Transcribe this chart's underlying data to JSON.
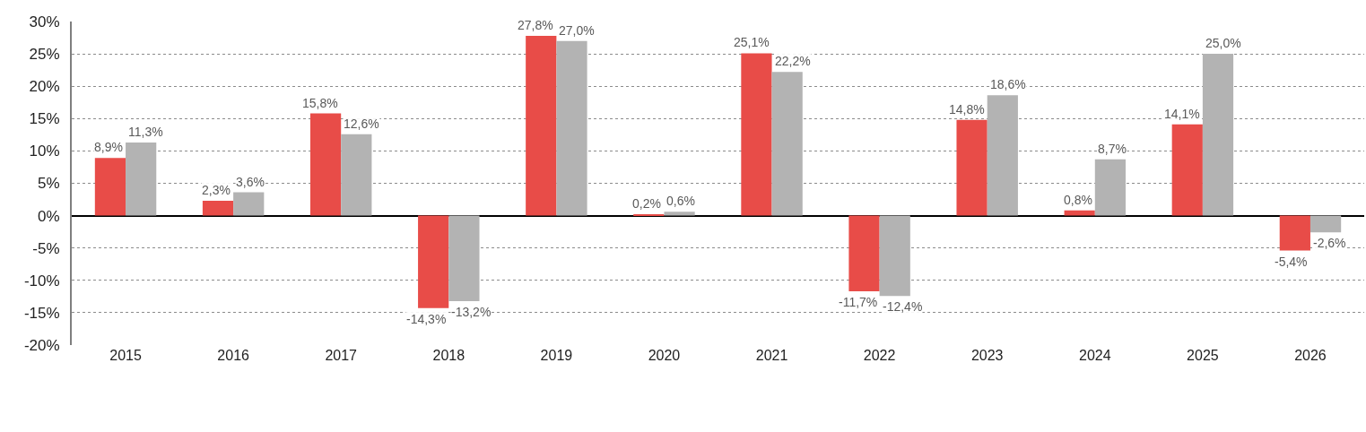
{
  "chart_data": {
    "type": "bar",
    "categories": [
      "2015",
      "2016",
      "2017",
      "2018",
      "2019",
      "2020",
      "2021",
      "2022",
      "2023",
      "2024",
      "2025",
      "2026"
    ],
    "series": [
      {
        "color": "#e84c48",
        "values": [
          8.9,
          2.3,
          15.8,
          -14.3,
          27.8,
          0.2,
          25.1,
          -11.7,
          14.8,
          0.8,
          14.1,
          -5.4
        ],
        "value_labels": [
          "8,9%",
          "2,3%",
          "15,8%",
          "-14,3%",
          "27,8%",
          "0,2%",
          "25,1%",
          "-11,7%",
          "14,8%",
          "0,8%",
          "14,1%",
          "-5,4%"
        ]
      },
      {
        "color": "#b3b3b3",
        "values": [
          11.3,
          3.6,
          12.6,
          -13.2,
          27.0,
          0.6,
          22.2,
          -12.4,
          18.6,
          8.7,
          25.0,
          -2.6
        ],
        "value_labels": [
          "11,3%",
          "3,6%",
          "12,6%",
          "-13,2%",
          "27,0%",
          "0,6%",
          "22,2%",
          "-12,4%",
          "18,6%",
          "8,7%",
          "25,0%",
          "-2,6%"
        ]
      }
    ],
    "ylim": [
      -20,
      30
    ],
    "yticks": [
      {
        "value": 30,
        "label": "30%"
      },
      {
        "value": 25,
        "label": "25%"
      },
      {
        "value": 20,
        "label": "20%"
      },
      {
        "value": 15,
        "label": "15%"
      },
      {
        "value": 10,
        "label": "10%"
      },
      {
        "value": 5,
        "label": "5%"
      },
      {
        "value": 0,
        "label": "0%"
      },
      {
        "value": -5,
        "label": "-5%"
      },
      {
        "value": -10,
        "label": "-10%"
      },
      {
        "value": -15,
        "label": "-15%"
      },
      {
        "value": -20,
        "label": "-20%"
      }
    ],
    "grid": "y"
  }
}
